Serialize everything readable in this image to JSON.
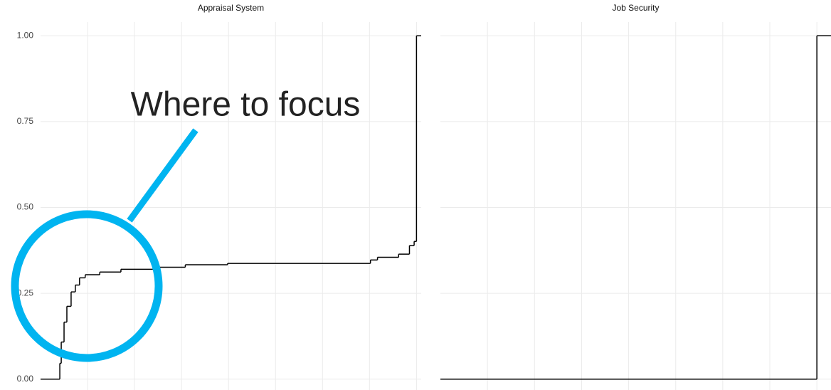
{
  "chart_data": [
    {
      "type": "step",
      "title": "Appraisal System",
      "annotation": "Where to focus",
      "x": [
        0,
        0.41,
        0.44,
        0.5,
        0.56,
        0.65,
        0.74,
        0.83,
        0.95,
        1.26,
        1.71,
        2.47,
        3.08,
        3.98,
        7.02,
        7.17,
        7.62,
        7.85,
        7.95,
        8.0
      ],
      "values": [
        0,
        0.046,
        0.108,
        0.166,
        0.212,
        0.254,
        0.274,
        0.295,
        0.304,
        0.312,
        0.32,
        0.326,
        0.333,
        0.337,
        0.347,
        0.355,
        0.364,
        0.389,
        0.401,
        1.0
      ],
      "color": "#000000",
      "xlim": [
        0,
        8.1
      ],
      "xticks": [
        1,
        2,
        3,
        4,
        5,
        6,
        7,
        8
      ],
      "ylim": [
        -0.04,
        1.04
      ],
      "yticks": [
        {
          "value": 0,
          "label": "0.00"
        },
        {
          "value": 0.25,
          "label": "0.25"
        },
        {
          "value": 0.5,
          "label": "0.50"
        },
        {
          "value": 0.75,
          "label": "0.75"
        },
        {
          "value": 1,
          "label": "1.00"
        }
      ],
      "grid": true
    },
    {
      "type": "step",
      "title": "Job Security",
      "x": [
        0,
        8.0
      ],
      "values": [
        0,
        1.0
      ],
      "color": "#000000",
      "xlim": [
        0,
        8.3
      ],
      "xticks": [
        1,
        2,
        3,
        4,
        5,
        6,
        7,
        8
      ],
      "ylim": [
        -0.04,
        1.04
      ],
      "yticks": [
        {
          "value": 0,
          "label": "0.00"
        },
        {
          "value": 0.25,
          "label": "0.25"
        },
        {
          "value": 0.5,
          "label": "0.50"
        },
        {
          "value": 0.75,
          "label": "0.75"
        },
        {
          "value": 1,
          "label": "1.00"
        }
      ],
      "grid": true
    }
  ]
}
